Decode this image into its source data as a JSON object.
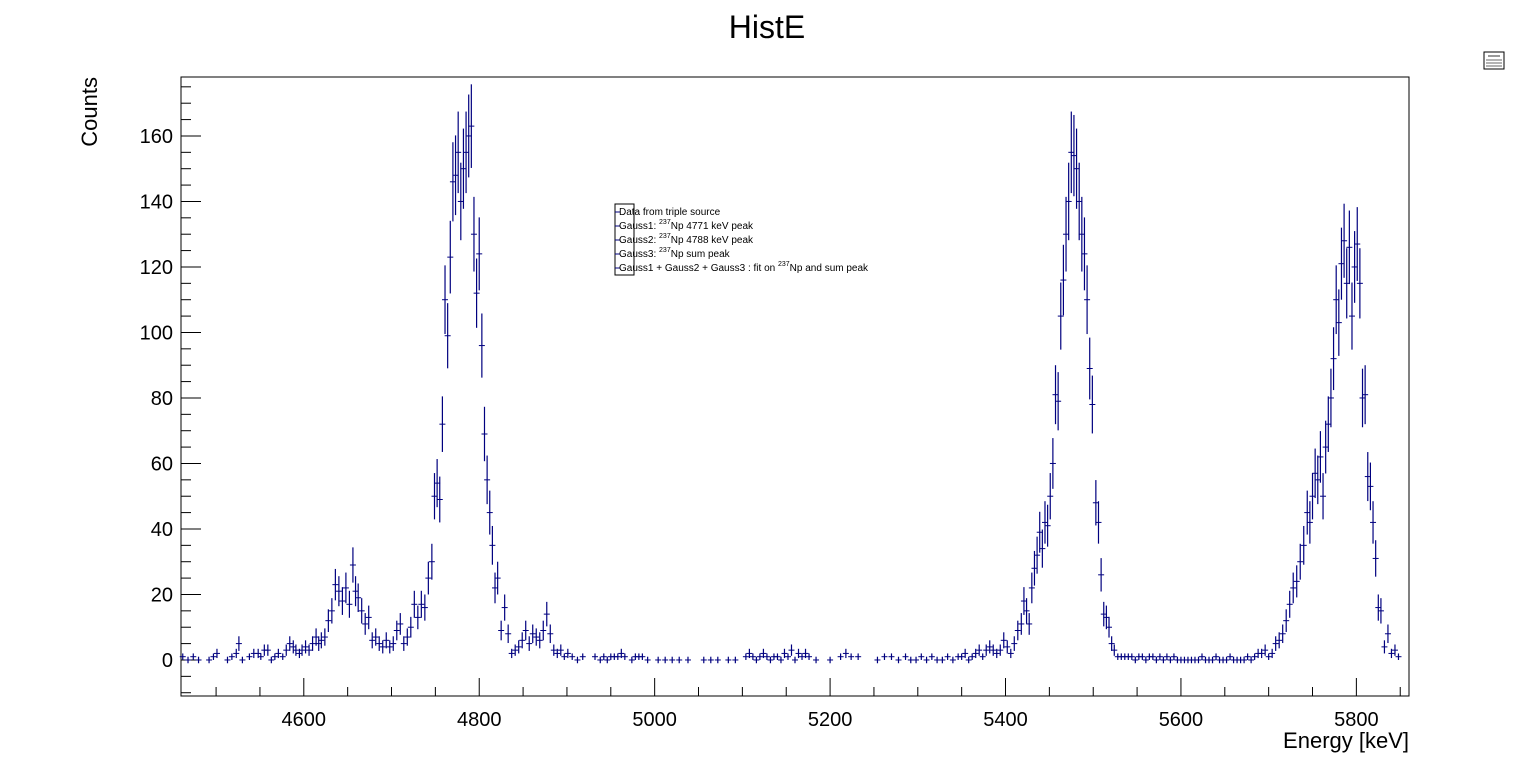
{
  "chart_data": {
    "type": "scatter",
    "title": "HistE",
    "xlabel": "Energy [keV]",
    "ylabel": "Counts",
    "xlim": [
      4460,
      5860
    ],
    "ylim": [
      -11,
      178
    ],
    "x_ticks": [
      4600,
      4800,
      5000,
      5200,
      5400,
      5600,
      5800
    ],
    "x_tick_labels": [
      "4600",
      "4800",
      "5000",
      "5200",
      "5400",
      "5600",
      "5800"
    ],
    "y_ticks": [
      0,
      20,
      40,
      60,
      80,
      100,
      120,
      140,
      160
    ],
    "y_tick_labels": [
      "0",
      "20",
      "40",
      "60",
      "80",
      "100",
      "120",
      "140",
      "160"
    ],
    "grid": false,
    "legend_placement": "center",
    "legend": [
      {
        "prefix": "Data from triple source",
        "sup": "",
        "suffix": ""
      },
      {
        "prefix": "Gauss1: ",
        "sup": "237",
        "suffix": "Np 4771 keV peak"
      },
      {
        "prefix": "Gauss2: ",
        "sup": "237",
        "suffix": "Np 4788 keV peak"
      },
      {
        "prefix": "Gauss3: ",
        "sup": "237",
        "suffix": "Np sum peak"
      },
      {
        "prefix": "Gauss1 + Gauss2 + Gauss3 : fit on ",
        "sup": "237",
        "suffix": "Np and sum peak"
      }
    ],
    "colors": {
      "markers": "#00007f",
      "frame": "#000000"
    },
    "series": [
      {
        "values": [
          [
            4462,
            1
          ],
          [
            4468,
            0
          ],
          [
            4474,
            1
          ],
          [
            4480,
            0
          ],
          [
            4492,
            0
          ],
          [
            4497,
            1
          ],
          [
            4501,
            2
          ],
          [
            4513,
            0
          ],
          [
            4518,
            1
          ],
          [
            4523,
            2
          ],
          [
            4526,
            5
          ],
          [
            4530,
            0
          ],
          [
            4538,
            1
          ],
          [
            4543,
            2
          ],
          [
            4548,
            2
          ],
          [
            4551,
            1
          ],
          [
            4555,
            3
          ],
          [
            4559,
            3
          ],
          [
            4563,
            0
          ],
          [
            4567,
            1
          ],
          [
            4571,
            2
          ],
          [
            4576,
            1
          ],
          [
            4580,
            3
          ],
          [
            4584,
            5
          ],
          [
            4588,
            4
          ],
          [
            4591,
            3
          ],
          [
            4595,
            2
          ],
          [
            4598,
            3
          ],
          [
            4602,
            4
          ],
          [
            4606,
            3
          ],
          [
            4610,
            5
          ],
          [
            4614,
            7
          ],
          [
            4617,
            5
          ],
          [
            4620,
            6
          ],
          [
            4624,
            7
          ],
          [
            4628,
            12
          ],
          [
            4632,
            15
          ],
          [
            4636,
            23
          ],
          [
            4640,
            21
          ],
          [
            4644,
            18
          ],
          [
            4648,
            22
          ],
          [
            4652,
            17
          ],
          [
            4656,
            29
          ],
          [
            4659,
            21
          ],
          [
            4662,
            19
          ],
          [
            4666,
            15
          ],
          [
            4670,
            11
          ],
          [
            4674,
            13
          ],
          [
            4678,
            6
          ],
          [
            4682,
            7
          ],
          [
            4686,
            5
          ],
          [
            4690,
            4
          ],
          [
            4694,
            6
          ],
          [
            4698,
            4
          ],
          [
            4702,
            5
          ],
          [
            4706,
            9
          ],
          [
            4710,
            11
          ],
          [
            4714,
            5
          ],
          [
            4718,
            7
          ],
          [
            4722,
            10
          ],
          [
            4726,
            17
          ],
          [
            4730,
            13
          ],
          [
            4734,
            17
          ],
          [
            4738,
            16
          ],
          [
            4742,
            25
          ],
          [
            4746,
            30
          ],
          [
            4749,
            50
          ],
          [
            4752,
            54
          ],
          [
            4755,
            49
          ],
          [
            4758,
            72
          ],
          [
            4761,
            110
          ],
          [
            4764,
            99
          ],
          [
            4767,
            123
          ],
          [
            4770,
            146
          ],
          [
            4773,
            148
          ],
          [
            4776,
            155
          ],
          [
            4779,
            140
          ],
          [
            4782,
            150
          ],
          [
            4785,
            155
          ],
          [
            4788,
            160
          ],
          [
            4791,
            163
          ],
          [
            4794,
            130
          ],
          [
            4797,
            112
          ],
          [
            4800,
            124
          ],
          [
            4803,
            96
          ],
          [
            4806,
            69
          ],
          [
            4809,
            55
          ],
          [
            4812,
            45
          ],
          [
            4815,
            35
          ],
          [
            4818,
            22
          ],
          [
            4821,
            25
          ],
          [
            4825,
            9
          ],
          [
            4829,
            16
          ],
          [
            4833,
            8
          ],
          [
            4837,
            2
          ],
          [
            4841,
            3
          ],
          [
            4845,
            4
          ],
          [
            4849,
            6
          ],
          [
            4853,
            9
          ],
          [
            4857,
            5
          ],
          [
            4861,
            8
          ],
          [
            4865,
            7
          ],
          [
            4869,
            6
          ],
          [
            4873,
            9
          ],
          [
            4877,
            14
          ],
          [
            4881,
            8
          ],
          [
            4885,
            3
          ],
          [
            4889,
            2
          ],
          [
            4893,
            3
          ],
          [
            4897,
            1
          ],
          [
            4901,
            2
          ],
          [
            4906,
            1
          ],
          [
            4912,
            0
          ],
          [
            4918,
            1
          ],
          [
            4932,
            1
          ],
          [
            4938,
            0
          ],
          [
            4942,
            1
          ],
          [
            4946,
            0
          ],
          [
            4950,
            1
          ],
          [
            4954,
            1
          ],
          [
            4958,
            1
          ],
          [
            4962,
            2
          ],
          [
            4966,
            1
          ],
          [
            4974,
            0
          ],
          [
            4978,
            1
          ],
          [
            4982,
            1
          ],
          [
            4986,
            1
          ],
          [
            4992,
            0
          ],
          [
            5004,
            0
          ],
          [
            5012,
            0
          ],
          [
            5020,
            0
          ],
          [
            5028,
            0
          ],
          [
            5038,
            0
          ],
          [
            5056,
            0
          ],
          [
            5064,
            0
          ],
          [
            5072,
            0
          ],
          [
            5084,
            0
          ],
          [
            5092,
            0
          ],
          [
            5104,
            1
          ],
          [
            5108,
            2
          ],
          [
            5112,
            1
          ],
          [
            5116,
            0
          ],
          [
            5120,
            1
          ],
          [
            5124,
            2
          ],
          [
            5128,
            1
          ],
          [
            5132,
            0
          ],
          [
            5136,
            1
          ],
          [
            5140,
            1
          ],
          [
            5144,
            0
          ],
          [
            5148,
            2
          ],
          [
            5152,
            1
          ],
          [
            5156,
            3
          ],
          [
            5160,
            0
          ],
          [
            5164,
            2
          ],
          [
            5168,
            1
          ],
          [
            5172,
            2
          ],
          [
            5176,
            1
          ],
          [
            5184,
            0
          ],
          [
            5200,
            0
          ],
          [
            5212,
            1
          ],
          [
            5218,
            2
          ],
          [
            5224,
            1
          ],
          [
            5232,
            1
          ],
          [
            5254,
            0
          ],
          [
            5262,
            1
          ],
          [
            5270,
            1
          ],
          [
            5278,
            0
          ],
          [
            5286,
            1
          ],
          [
            5292,
            0
          ],
          [
            5298,
            0
          ],
          [
            5304,
            1
          ],
          [
            5310,
            0
          ],
          [
            5316,
            1
          ],
          [
            5322,
            0
          ],
          [
            5328,
            0
          ],
          [
            5334,
            1
          ],
          [
            5340,
            0
          ],
          [
            5346,
            1
          ],
          [
            5350,
            1
          ],
          [
            5354,
            2
          ],
          [
            5358,
            0
          ],
          [
            5362,
            1
          ],
          [
            5366,
            2
          ],
          [
            5370,
            3
          ],
          [
            5374,
            1
          ],
          [
            5378,
            3
          ],
          [
            5382,
            4
          ],
          [
            5386,
            3
          ],
          [
            5390,
            2
          ],
          [
            5394,
            3
          ],
          [
            5398,
            6
          ],
          [
            5402,
            4
          ],
          [
            5406,
            2
          ],
          [
            5410,
            5
          ],
          [
            5414,
            9
          ],
          [
            5418,
            11
          ],
          [
            5421,
            18
          ],
          [
            5424,
            15
          ],
          [
            5427,
            11
          ],
          [
            5430,
            22
          ],
          [
            5433,
            28
          ],
          [
            5436,
            32
          ],
          [
            5439,
            39
          ],
          [
            5442,
            34
          ],
          [
            5445,
            42
          ],
          [
            5448,
            41
          ],
          [
            5451,
            50
          ],
          [
            5454,
            60
          ],
          [
            5457,
            81
          ],
          [
            5460,
            79
          ],
          [
            5463,
            105
          ],
          [
            5466,
            116
          ],
          [
            5469,
            130
          ],
          [
            5472,
            140
          ],
          [
            5475,
            155
          ],
          [
            5478,
            154
          ],
          [
            5481,
            150
          ],
          [
            5484,
            140
          ],
          [
            5487,
            130
          ],
          [
            5490,
            124
          ],
          [
            5493,
            110
          ],
          [
            5496,
            89
          ],
          [
            5499,
            78
          ],
          [
            5503,
            48
          ],
          [
            5506,
            42
          ],
          [
            5509,
            26
          ],
          [
            5512,
            14
          ],
          [
            5515,
            13
          ],
          [
            5518,
            10
          ],
          [
            5521,
            5
          ],
          [
            5524,
            3
          ],
          [
            5528,
            1
          ],
          [
            5532,
            1
          ],
          [
            5536,
            1
          ],
          [
            5540,
            1
          ],
          [
            5544,
            1
          ],
          [
            5548,
            0
          ],
          [
            5552,
            1
          ],
          [
            5556,
            1
          ],
          [
            5560,
            0
          ],
          [
            5564,
            1
          ],
          [
            5568,
            1
          ],
          [
            5572,
            0
          ],
          [
            5576,
            1
          ],
          [
            5580,
            0
          ],
          [
            5584,
            1
          ],
          [
            5588,
            0
          ],
          [
            5592,
            1
          ],
          [
            5596,
            0
          ],
          [
            5600,
            0
          ],
          [
            5604,
            0
          ],
          [
            5608,
            0
          ],
          [
            5612,
            0
          ],
          [
            5616,
            0
          ],
          [
            5620,
            0
          ],
          [
            5624,
            1
          ],
          [
            5628,
            0
          ],
          [
            5632,
            0
          ],
          [
            5636,
            0
          ],
          [
            5640,
            1
          ],
          [
            5644,
            0
          ],
          [
            5648,
            0
          ],
          [
            5652,
            0
          ],
          [
            5656,
            1
          ],
          [
            5660,
            0
          ],
          [
            5664,
            0
          ],
          [
            5668,
            0
          ],
          [
            5672,
            0
          ],
          [
            5676,
            1
          ],
          [
            5680,
            0
          ],
          [
            5684,
            1
          ],
          [
            5688,
            2
          ],
          [
            5692,
            2
          ],
          [
            5696,
            3
          ],
          [
            5700,
            1
          ],
          [
            5704,
            2
          ],
          [
            5708,
            5
          ],
          [
            5712,
            6
          ],
          [
            5716,
            8
          ],
          [
            5720,
            12
          ],
          [
            5724,
            17
          ],
          [
            5728,
            22
          ],
          [
            5732,
            24
          ],
          [
            5736,
            30
          ],
          [
            5740,
            35
          ],
          [
            5744,
            45
          ],
          [
            5747,
            42
          ],
          [
            5750,
            50
          ],
          [
            5753,
            57
          ],
          [
            5756,
            55
          ],
          [
            5759,
            62
          ],
          [
            5762,
            50
          ],
          [
            5765,
            65
          ],
          [
            5768,
            72
          ],
          [
            5771,
            80
          ],
          [
            5774,
            92
          ],
          [
            5777,
            110
          ],
          [
            5780,
            103
          ],
          [
            5783,
            121
          ],
          [
            5786,
            128
          ],
          [
            5789,
            115
          ],
          [
            5792,
            126
          ],
          [
            5795,
            105
          ],
          [
            5798,
            120
          ],
          [
            5801,
            127
          ],
          [
            5804,
            115
          ],
          [
            5807,
            80
          ],
          [
            5810,
            81
          ],
          [
            5813,
            56
          ],
          [
            5816,
            53
          ],
          [
            5819,
            42
          ],
          [
            5822,
            31
          ],
          [
            5825,
            16
          ],
          [
            5828,
            15
          ],
          [
            5832,
            4
          ],
          [
            5836,
            8
          ],
          [
            5840,
            2
          ],
          [
            5844,
            3
          ],
          [
            5848,
            1
          ]
        ]
      }
    ]
  }
}
